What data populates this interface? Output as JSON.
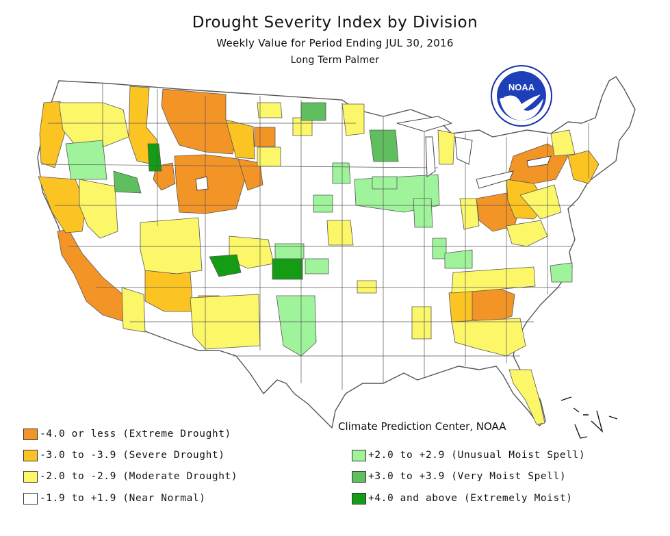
{
  "header": {
    "title": "Drought Severity Index by Division",
    "subtitle": "Weekly Value for Period Ending JUL 30, 2016",
    "index_name": "Long Term Palmer"
  },
  "logo": {
    "text": "NOAA",
    "icon": "noaa-logo-icon"
  },
  "credit": "Climate Prediction Center, NOAA",
  "colors": {
    "extreme_drought": "#f39426",
    "severe_drought": "#fcc423",
    "moderate_drought": "#fcf669",
    "near_normal": "#ffffff",
    "unusual_moist": "#9ff39a",
    "very_moist": "#5fbf5f",
    "extremely_moist": "#149c14"
  },
  "legend": {
    "left": [
      {
        "label": "-4.0 or less (Extreme Drought)",
        "color_key": "extreme_drought"
      },
      {
        "label": "-3.0 to -3.9 (Severe Drought)",
        "color_key": "severe_drought"
      },
      {
        "label": "-2.0 to -2.9 (Moderate Drought)",
        "color_key": "moderate_drought"
      },
      {
        "label": "-1.9 to +1.9 (Near Normal)",
        "color_key": "near_normal"
      }
    ],
    "right": [
      {
        "label": "+2.0 to +2.9 (Unusual Moist Spell)",
        "color_key": "unusual_moist"
      },
      {
        "label": "+3.0 to +3.9 (Very Moist Spell)",
        "color_key": "very_moist"
      },
      {
        "label": "+4.0 and above (Extremely Moist)",
        "color_key": "extremely_moist"
      }
    ]
  }
}
